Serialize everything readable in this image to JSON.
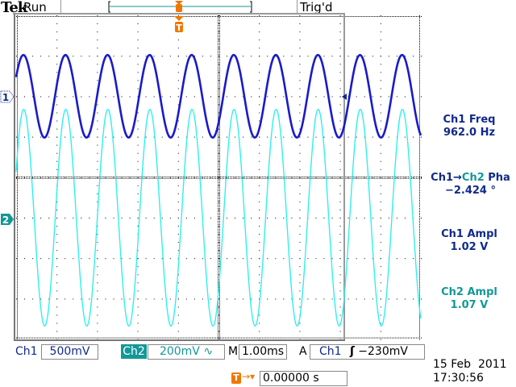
{
  "header": {
    "brand": "Tek",
    "acq_state": "Run",
    "trigger_status": "Trig'd",
    "trigger_marker": "T"
  },
  "measurements": [
    {
      "label": "Ch1 Freq",
      "value": "962.0 Hz",
      "color": "#102a8c"
    },
    {
      "label_a": "Ch1",
      "arrow": "→",
      "label_b": "Ch2",
      "label_c": " Pha",
      "value": "−2.424 °",
      "color": "#102a8c"
    },
    {
      "label": "Ch1 Ampl",
      "value": "1.02 V",
      "color": "#102a8c"
    },
    {
      "label": "Ch2 Ampl",
      "value": "1.07 V",
      "color": "#129898"
    }
  ],
  "channel_markers": {
    "ch1": "1",
    "ch2": "2"
  },
  "footer": {
    "ch1_label": "Ch1",
    "ch1_scale": "500mV",
    "ch2_label": "Ch2",
    "ch2_scale": "200mV",
    "ch2_bw_icon": "∿",
    "timebase_label": "M",
    "timebase": "1.00ms",
    "trigger_mode": "A",
    "trigger_source": "Ch1",
    "trigger_slope_icon": "rising-edge",
    "trigger_slope": "ʃ",
    "trigger_level": "−230mV",
    "trigger_position_label": "T",
    "trigger_position": "0.00000 s",
    "date": "15 Feb  2011",
    "time": "17:30:56"
  },
  "chart_data": {
    "type": "line",
    "x_unit": "ms",
    "xlim": [
      -5,
      5
    ],
    "x_per_div": 1.0,
    "grid": true,
    "divisions": {
      "x": 10,
      "y": 8
    },
    "series": [
      {
        "name": "Ch1",
        "color": "#1a1acc",
        "volts_per_div": 0.5,
        "frequency_hz": 962.0,
        "amplitude_pp_v": 1.02,
        "first_peak_ms": -4.82
      },
      {
        "name": "Ch2",
        "color": "#33eeee",
        "volts_per_div": 0.2,
        "frequency_hz": 962.0,
        "amplitude_pp_v": 1.07,
        "first_peak_ms": -4.82,
        "phase_deg": -2.424
      }
    ]
  }
}
